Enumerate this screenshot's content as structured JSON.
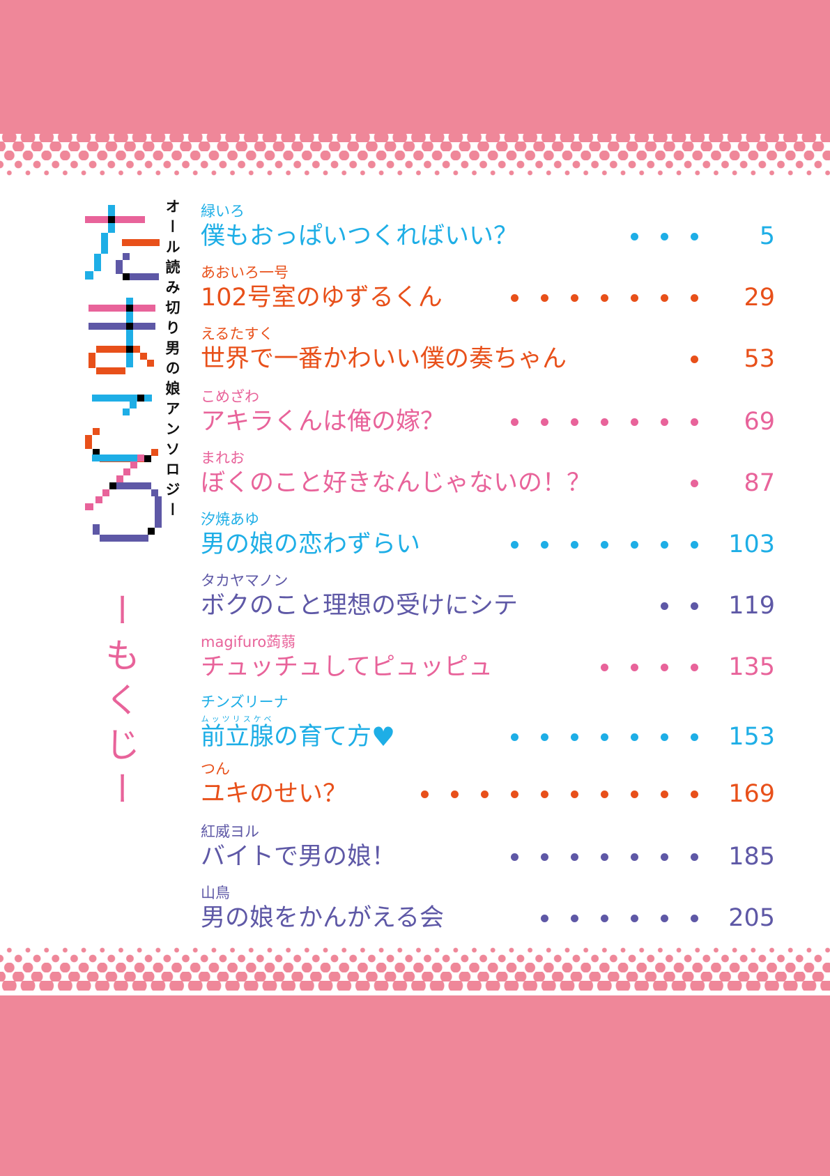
{
  "colors": {
    "band": "#ef8799",
    "cyan": "#1eaee6",
    "orange": "#e8501a",
    "pink": "#e8639a",
    "purple": "#5e58a6"
  },
  "logo_text": "たまごころ",
  "subtitle": "オール読み切り男の娘アンソロジー",
  "mokuji": "ーもくじー",
  "entries": [
    {
      "author": "緑いろ",
      "title": "僕もおっぱいつくればいい？",
      "page": "5",
      "color": "#1eaee6",
      "dots": 3
    },
    {
      "author": "あおいろ一号",
      "title": "102号室のゆずるくん",
      "page": "29",
      "color": "#e8501a",
      "dots": 7
    },
    {
      "author": "えるたすく",
      "title": "世界で一番かわいい僕の奏ちゃん",
      "page": "53",
      "color": "#e8501a",
      "dots": 1
    },
    {
      "author": "こめざわ",
      "title": "アキラくんは俺の嫁？",
      "page": "69",
      "color": "#e8639a",
      "dots": 7
    },
    {
      "author": "まれお",
      "title": "ぼくのこと好きなんじゃないの！？",
      "page": "87",
      "color": "#e8639a",
      "dots": 1
    },
    {
      "author": "汐焼あゆ",
      "title": "男の娘の恋わずらい",
      "page": "103",
      "color": "#1eaee6",
      "dots": 7
    },
    {
      "author": "タカヤマノン",
      "title": "ボクのこと理想の受けにシテ",
      "page": "119",
      "color": "#5e58a6",
      "dots": 2
    },
    {
      "author": "magifuro蒟蒻",
      "title": "チュッチュしてピュッピュ",
      "page": "135",
      "color": "#e8639a",
      "dots": 4
    },
    {
      "author": "チンズリーナ",
      "title_ruby_base": "前立腺",
      "title_ruby": "ムッツリスケベ",
      "title": "の育て方",
      "heart_icon": "heart-icon",
      "page": "153",
      "color": "#1eaee6",
      "dots": 7
    },
    {
      "author": "つん",
      "title": "ユキのせい？",
      "page": "169",
      "color": "#e8501a",
      "dots": 10
    },
    {
      "author": "紅威ヨル",
      "title": "バイトで男の娘！",
      "page": "185",
      "color": "#5e58a6",
      "dots": 7
    },
    {
      "author": "山鳥",
      "title": "男の娘をかんがえる会",
      "page": "205",
      "color": "#5e58a6",
      "dots": 6
    }
  ]
}
